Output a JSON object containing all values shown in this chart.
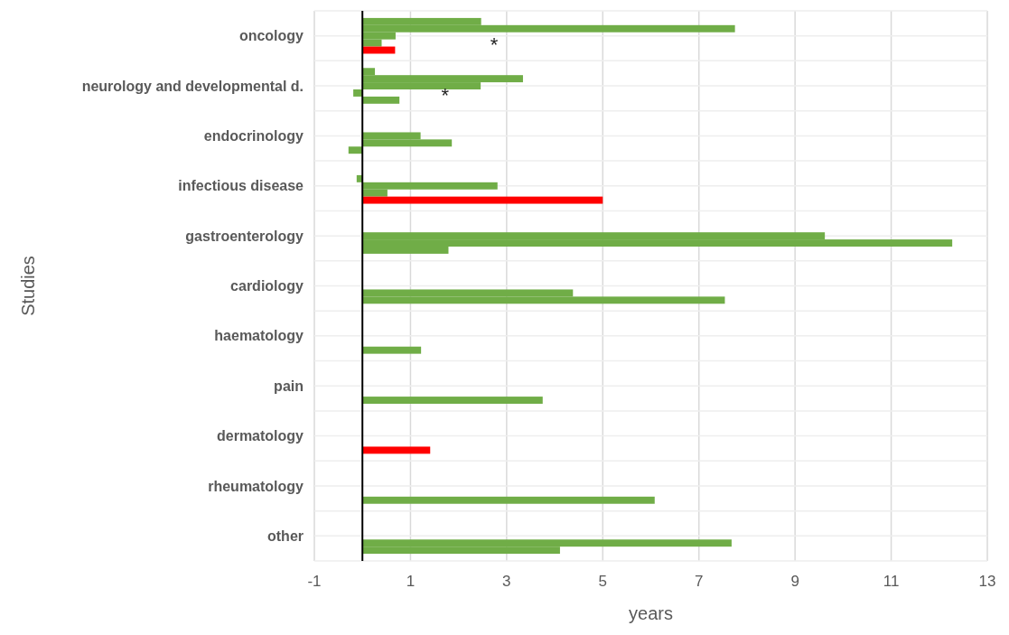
{
  "chart_data": {
    "type": "bar",
    "orientation": "horizontal",
    "xlabel": "years",
    "ylabel": "Studies",
    "categories": [
      "oncology",
      "neurology and developmental d.",
      "endocrinology",
      "infectious disease",
      "gastroenterology",
      "cardiology",
      "haematology",
      "pain",
      "dermatology",
      "rheumatology",
      "other"
    ],
    "series": [
      {
        "color": "#70ad47",
        "values": [
          2.47,
          0.26,
          null,
          null,
          null,
          null,
          null,
          null,
          null,
          null,
          null
        ]
      },
      {
        "color": "#70ad47",
        "values": [
          7.75,
          3.34,
          null,
          -0.12,
          null,
          null,
          null,
          null,
          null,
          null,
          null
        ]
      },
      {
        "color": "#70ad47",
        "values": [
          0.69,
          2.46,
          1.21,
          2.81,
          9.62,
          null,
          null,
          null,
          null,
          null,
          null
        ]
      },
      {
        "color": "#70ad47",
        "values": [
          0.4,
          -0.19,
          1.86,
          0.52,
          12.27,
          4.38,
          null,
          null,
          null,
          null,
          7.68
        ]
      },
      {
        "colors": [
          "#ff0000",
          "#70ad47",
          "#70ad47",
          "#ff0000",
          "#70ad47",
          "#70ad47",
          "#70ad47",
          "#70ad47",
          "#ff0000",
          "#70ad47",
          "#70ad47"
        ],
        "values": [
          0.68,
          0.77,
          -0.29,
          5.0,
          1.79,
          7.54,
          1.22,
          3.75,
          1.41,
          6.08,
          4.11
        ]
      }
    ],
    "xlim": [
      -1,
      13
    ],
    "xticks": [
      -1,
      1,
      3,
      5,
      7,
      9,
      11,
      13
    ],
    "grid": true,
    "annotations": [
      {
        "text": "*",
        "x": 2.74,
        "y": "oncology"
      },
      {
        "text": "*",
        "x": 1.72,
        "y": "neurology and developmental d."
      }
    ]
  }
}
